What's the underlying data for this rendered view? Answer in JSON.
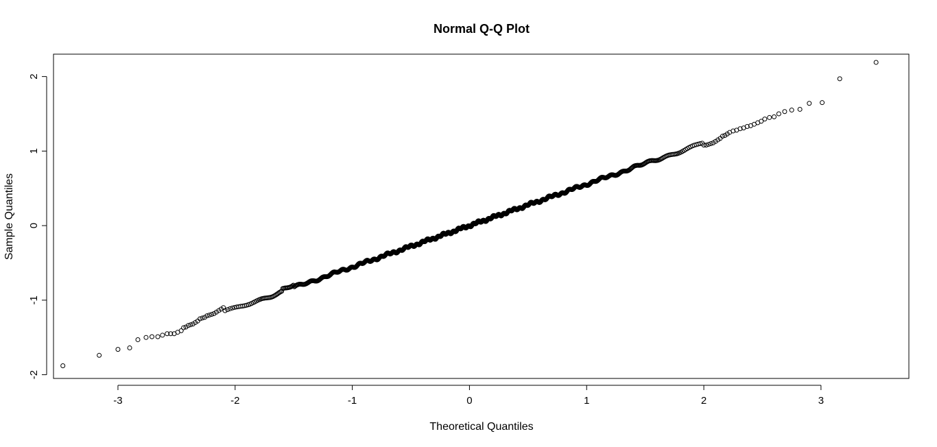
{
  "chart_data": {
    "type": "scatter",
    "title": "Normal Q-Q Plot",
    "xlabel": "Theoretical Quantiles",
    "ylabel": "Sample Quantiles",
    "xlim": [
      -3.55,
      3.75
    ],
    "ylim": [
      -2.05,
      2.3
    ],
    "x_ticks": [
      -3,
      -2,
      -1,
      0,
      1,
      2,
      3
    ],
    "y_ticks": [
      -2,
      -1,
      0,
      1,
      2
    ],
    "x_tick_labels": [
      "-3",
      "-2",
      "-1",
      "0",
      "1",
      "2",
      "3"
    ],
    "y_tick_labels": [
      "-2",
      "-1",
      "0",
      "1",
      "2"
    ],
    "grid": false,
    "n_points": 1000,
    "slope": 0.555,
    "intercept": 0.0,
    "lower_tail": [
      [
        -3.47,
        -1.88
      ],
      [
        -3.16,
        -1.74
      ],
      [
        -3.0,
        -1.66
      ],
      [
        -2.9,
        -1.64
      ],
      [
        -2.83,
        -1.53
      ],
      [
        -2.76,
        -1.5
      ],
      [
        -2.71,
        -1.49
      ],
      [
        -2.66,
        -1.49
      ],
      [
        -2.62,
        -1.47
      ],
      [
        -2.58,
        -1.45
      ],
      [
        -2.55,
        -1.45
      ],
      [
        -2.52,
        -1.45
      ],
      [
        -2.49,
        -1.43
      ],
      [
        -2.46,
        -1.41
      ],
      [
        -2.44,
        -1.37
      ],
      [
        -2.42,
        -1.36
      ],
      [
        -2.4,
        -1.34
      ],
      [
        -2.38,
        -1.33
      ],
      [
        -2.36,
        -1.32
      ],
      [
        -2.34,
        -1.3
      ],
      [
        -2.32,
        -1.28
      ],
      [
        -2.3,
        -1.25
      ],
      [
        -2.28,
        -1.24
      ],
      [
        -2.26,
        -1.23
      ],
      [
        -2.24,
        -1.21
      ],
      [
        -2.22,
        -1.2
      ],
      [
        -2.2,
        -1.19
      ],
      [
        -2.18,
        -1.18
      ],
      [
        -2.16,
        -1.16
      ],
      [
        -2.14,
        -1.14
      ],
      [
        -2.12,
        -1.12
      ],
      [
        -2.1,
        -1.1
      ]
    ],
    "upper_tail": [
      [
        3.47,
        2.19
      ],
      [
        3.16,
        1.97
      ],
      [
        3.01,
        1.65
      ],
      [
        2.9,
        1.64
      ],
      [
        2.82,
        1.56
      ],
      [
        2.75,
        1.55
      ],
      [
        2.69,
        1.53
      ],
      [
        2.64,
        1.5
      ],
      [
        2.6,
        1.46
      ],
      [
        2.56,
        1.45
      ],
      [
        2.52,
        1.43
      ],
      [
        2.49,
        1.4
      ],
      [
        2.46,
        1.38
      ],
      [
        2.43,
        1.36
      ],
      [
        2.4,
        1.34
      ],
      [
        2.37,
        1.33
      ],
      [
        2.34,
        1.31
      ],
      [
        2.31,
        1.3
      ],
      [
        2.28,
        1.28
      ],
      [
        2.25,
        1.27
      ],
      [
        2.22,
        1.25
      ],
      [
        2.2,
        1.23
      ],
      [
        2.18,
        1.21
      ],
      [
        2.16,
        1.2
      ],
      [
        2.14,
        1.17
      ],
      [
        2.12,
        1.15
      ],
      [
        2.1,
        1.13
      ],
      [
        2.08,
        1.11
      ],
      [
        2.06,
        1.1
      ],
      [
        2.04,
        1.09
      ],
      [
        2.02,
        1.08
      ],
      [
        2.0,
        1.08
      ]
    ]
  }
}
